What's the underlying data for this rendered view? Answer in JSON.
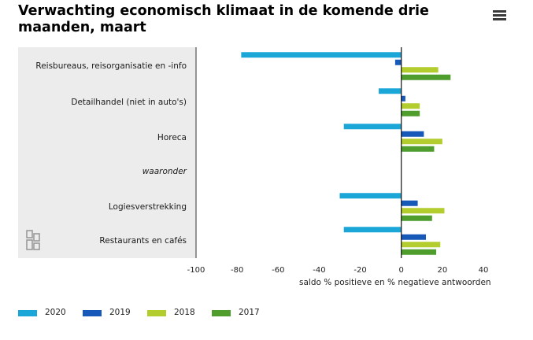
{
  "title": "Verwachting economisch klimaat in de komende drie maanden, maart",
  "menu_icon": "hamburger-menu-icon",
  "logo_icon": "cbs-logo-icon",
  "chart_data": {
    "type": "bar",
    "orientation": "horizontal",
    "categories": [
      "Reisbureaus, reisorganisatie en -info",
      "Detailhandel (niet in auto's)",
      "Horeca",
      "waaronder",
      "Logiesverstrekking",
      "Restaurants en cafés"
    ],
    "category_styles": [
      "normal",
      "normal",
      "normal",
      "italic",
      "normal",
      "normal"
    ],
    "series": [
      {
        "name": "2020",
        "color": "#1aa7d8",
        "values": [
          -78,
          -11,
          -28,
          null,
          -30,
          -28
        ]
      },
      {
        "name": "2019",
        "color": "#1659b8",
        "values": [
          -3,
          2,
          11,
          null,
          8,
          12
        ]
      },
      {
        "name": "2018",
        "color": "#b3cc2e",
        "values": [
          18,
          9,
          20,
          null,
          21,
          19
        ]
      },
      {
        "name": "2017",
        "color": "#4f9e2d",
        "values": [
          24,
          9,
          16,
          null,
          15,
          17
        ]
      }
    ],
    "xlim": [
      -100,
      40
    ],
    "xticks": [
      "-100",
      "-80",
      "-60",
      "-40",
      "-20",
      "0",
      "20",
      "40"
    ],
    "xlabel": "saldo % positieve en % negatieve antwoorden",
    "ylabel": "",
    "grid": false,
    "legend_position": "bottom"
  }
}
